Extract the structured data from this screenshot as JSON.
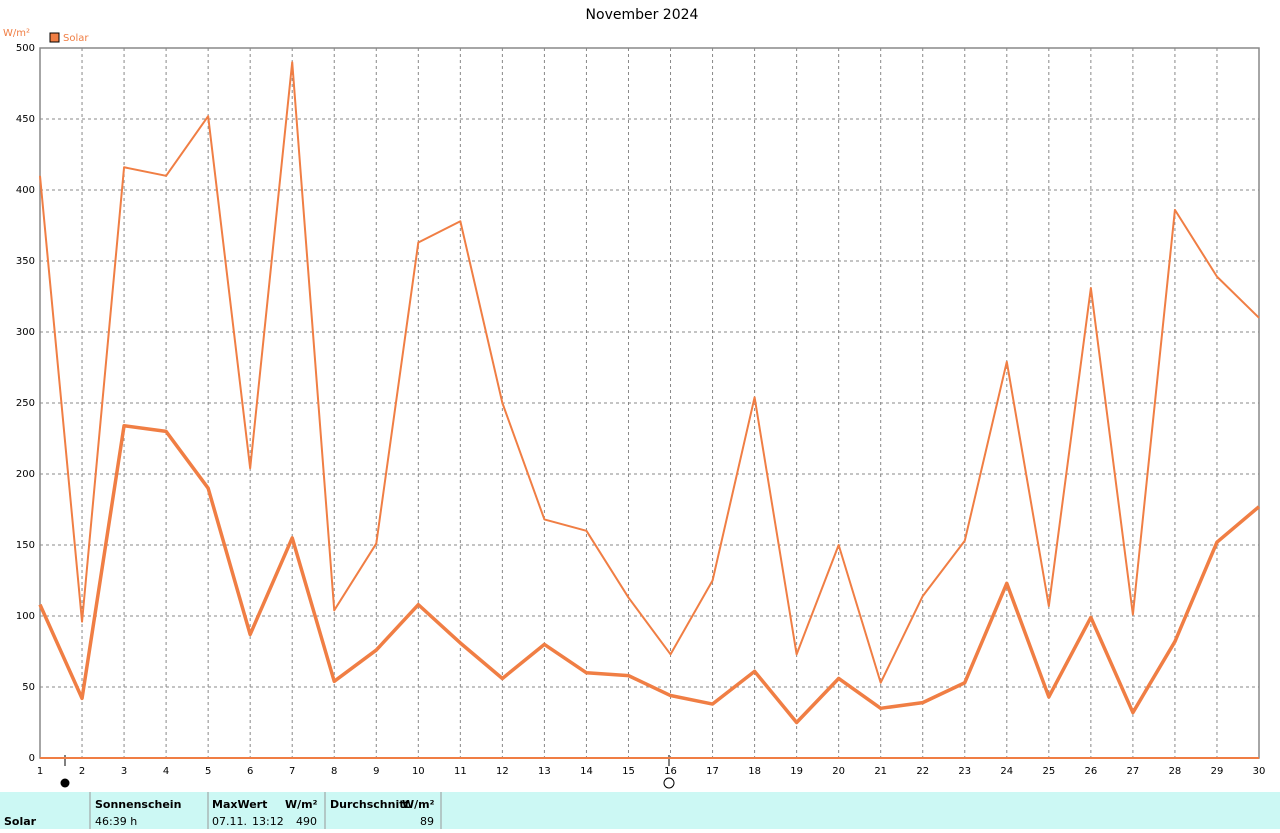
{
  "chart_data": {
    "type": "line",
    "title": "November 2024",
    "y_label": "W/m²",
    "x": [
      1,
      2,
      3,
      4,
      5,
      6,
      7,
      8,
      9,
      10,
      11,
      12,
      13,
      14,
      15,
      16,
      17,
      18,
      19,
      20,
      21,
      22,
      23,
      24,
      25,
      26,
      27,
      28,
      29,
      30
    ],
    "xlim": [
      1,
      30
    ],
    "xticks": [
      1,
      2,
      3,
      4,
      5,
      6,
      7,
      8,
      9,
      10,
      11,
      12,
      13,
      14,
      15,
      16,
      17,
      18,
      19,
      20,
      21,
      22,
      23,
      24,
      25,
      26,
      27,
      28,
      29,
      30
    ],
    "ylim": [
      0,
      500
    ],
    "yticks": [
      0,
      50,
      100,
      150,
      200,
      250,
      300,
      350,
      400,
      450,
      500
    ],
    "grid": true,
    "series": [
      {
        "name": "Solar",
        "color": "#f07e44",
        "values": [
          410,
          96,
          416,
          410,
          452,
          204,
          490,
          104,
          151,
          363,
          378,
          250,
          168,
          160,
          113,
          73,
          125,
          254,
          73,
          150,
          53,
          114,
          153,
          279,
          107,
          331,
          101,
          386,
          339,
          310
        ]
      },
      {
        "color": "#f07e44",
        "values": [
          108,
          42,
          234,
          230,
          190,
          87,
          155,
          54,
          76,
          108,
          81,
          56,
          80,
          60,
          58,
          44,
          38,
          61,
          25,
          56,
          35,
          39,
          53,
          123,
          43,
          99,
          32,
          82,
          152,
          177
        ]
      }
    ]
  },
  "summary_table": {
    "row_label": "Solar",
    "sunshine": {
      "label": "Sonnenschein",
      "value": "46:39 h"
    },
    "max": {
      "label": "MaxWert",
      "unit": "W/m²",
      "date": "07.11.",
      "time": "13:12",
      "value": "490"
    },
    "avg": {
      "label": "Durchschnitt",
      "unit": "W/m²",
      "value": "89"
    }
  }
}
